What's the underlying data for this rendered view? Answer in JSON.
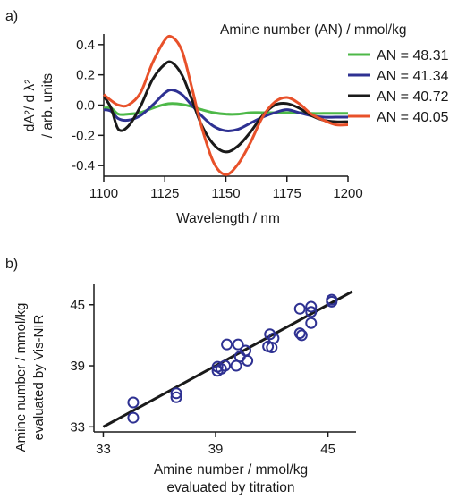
{
  "panel_a": {
    "label": "a)",
    "legend_title": "Amine number (AN) / mmol/kg",
    "ylabel_line1": "dA²/ d λ²",
    "ylabel_line2": "/ arb. units",
    "xlabel": "Wavelength / nm"
  },
  "panel_b": {
    "label": "b)",
    "ylabel_line1": "Amine number / mmol/kg",
    "ylabel_line2": "evaluated by Vis-NIR",
    "xlabel_line1": "Amine number / mmol/kg",
    "xlabel_line2": "evaluated by titration"
  },
  "chart_data": [
    {
      "type": "line",
      "xlabel": "Wavelength / nm",
      "ylabel": "dA²/ d λ² / arb. units",
      "xlim": [
        1100,
        1200
      ],
      "ylim": [
        -0.47,
        0.47
      ],
      "x_ticks": [
        1100,
        1125,
        1150,
        1175,
        1200
      ],
      "y_ticks": [
        -0.4,
        -0.2,
        0.0,
        0.2,
        0.4
      ],
      "y_tick_labels": [
        "-0.4",
        "-0.2",
        "0.0",
        "0.2",
        "0.4"
      ],
      "legend_title": "Amine number (AN) / mmol/kg",
      "legend_position": "top-right",
      "series": [
        {
          "name": "AN = 48.31",
          "color": "#4db848",
          "x": [
            1100,
            1103,
            1106,
            1110,
            1115,
            1120,
            1125,
            1128,
            1132,
            1136,
            1140,
            1145,
            1150,
            1155,
            1160,
            1165,
            1170,
            1175,
            1180,
            1185,
            1190,
            1195,
            1200
          ],
          "y": [
            -0.02,
            -0.02,
            -0.06,
            -0.06,
            -0.05,
            -0.02,
            0.005,
            0.01,
            0.005,
            -0.01,
            -0.03,
            -0.05,
            -0.06,
            -0.06,
            -0.05,
            -0.05,
            -0.05,
            -0.05,
            -0.05,
            -0.055,
            -0.055,
            -0.055,
            -0.055
          ]
        },
        {
          "name": "AN = 41.34",
          "color": "#2e3192",
          "x": [
            1100,
            1103,
            1106,
            1110,
            1115,
            1120,
            1125,
            1128,
            1132,
            1136,
            1140,
            1145,
            1150,
            1155,
            1160,
            1165,
            1170,
            1175,
            1180,
            1185,
            1190,
            1195,
            1200
          ],
          "y": [
            -0.03,
            -0.04,
            -0.09,
            -0.1,
            -0.07,
            0.0,
            0.08,
            0.1,
            0.07,
            0.0,
            -0.07,
            -0.14,
            -0.17,
            -0.16,
            -0.12,
            -0.08,
            -0.05,
            -0.03,
            -0.05,
            -0.07,
            -0.08,
            -0.08,
            -0.08
          ]
        },
        {
          "name": "AN = 40.72",
          "color": "#1a1a1a",
          "x": [
            1100,
            1103,
            1106,
            1110,
            1115,
            1120,
            1125,
            1128,
            1132,
            1136,
            1140,
            1145,
            1150,
            1155,
            1160,
            1165,
            1170,
            1175,
            1180,
            1185,
            1190,
            1195,
            1200
          ],
          "y": [
            0.06,
            -0.02,
            -0.16,
            -0.14,
            -0.01,
            0.17,
            0.27,
            0.28,
            0.2,
            0.04,
            -0.13,
            -0.26,
            -0.31,
            -0.27,
            -0.18,
            -0.07,
            0.0,
            0.01,
            -0.02,
            -0.07,
            -0.1,
            -0.11,
            -0.11
          ]
        },
        {
          "name": "AN = 40.05",
          "color": "#e8512a",
          "x": [
            1100,
            1103,
            1106,
            1110,
            1115,
            1120,
            1125,
            1128,
            1132,
            1136,
            1140,
            1145,
            1150,
            1155,
            1160,
            1165,
            1170,
            1175,
            1180,
            1185,
            1190,
            1195,
            1200
          ],
          "y": [
            0.07,
            0.03,
            0.0,
            0.0,
            0.08,
            0.28,
            0.43,
            0.45,
            0.36,
            0.12,
            -0.14,
            -0.38,
            -0.46,
            -0.39,
            -0.25,
            -0.08,
            0.02,
            0.05,
            0.01,
            -0.06,
            -0.1,
            -0.13,
            -0.13
          ]
        }
      ]
    },
    {
      "type": "scatter",
      "xlabel": "Amine number / mmol/kg evaluated by titration",
      "ylabel": "Amine number / mmol/kg evaluated by Vis-NIR",
      "xlim": [
        32.5,
        46.5
      ],
      "ylim": [
        32.5,
        47
      ],
      "x_ticks": [
        33,
        39,
        45
      ],
      "y_ticks": [
        33,
        39,
        45
      ],
      "marker_color": "#2e3192",
      "points": [
        {
          "x": 34.6,
          "y": 35.4
        },
        {
          "x": 34.6,
          "y": 33.9
        },
        {
          "x": 36.9,
          "y": 36.3
        },
        {
          "x": 36.9,
          "y": 35.9
        },
        {
          "x": 39.1,
          "y": 38.5
        },
        {
          "x": 39.1,
          "y": 38.9
        },
        {
          "x": 39.3,
          "y": 38.7
        },
        {
          "x": 39.5,
          "y": 39.0
        },
        {
          "x": 39.6,
          "y": 41.1
        },
        {
          "x": 40.1,
          "y": 39.0
        },
        {
          "x": 40.2,
          "y": 41.1
        },
        {
          "x": 40.3,
          "y": 39.9
        },
        {
          "x": 40.6,
          "y": 40.5
        },
        {
          "x": 40.7,
          "y": 39.5
        },
        {
          "x": 41.8,
          "y": 40.9
        },
        {
          "x": 41.9,
          "y": 42.1
        },
        {
          "x": 42.0,
          "y": 40.8
        },
        {
          "x": 42.1,
          "y": 41.7
        },
        {
          "x": 43.5,
          "y": 44.6
        },
        {
          "x": 43.5,
          "y": 42.2
        },
        {
          "x": 43.6,
          "y": 42.0
        },
        {
          "x": 44.1,
          "y": 44.8
        },
        {
          "x": 44.1,
          "y": 44.3
        },
        {
          "x": 44.1,
          "y": 43.2
        },
        {
          "x": 45.2,
          "y": 45.3
        },
        {
          "x": 45.2,
          "y": 45.5
        }
      ],
      "fit_line": {
        "x": [
          33.0,
          46.3
        ],
        "y": [
          33.0,
          46.3
        ],
        "color": "#1a1a1a"
      }
    }
  ]
}
